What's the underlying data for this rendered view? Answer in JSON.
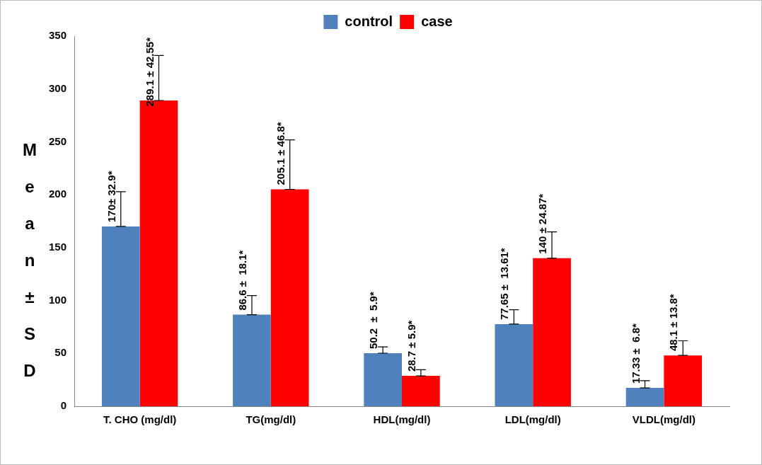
{
  "chart_data": {
    "type": "bar",
    "ylabel": "Mean±SD",
    "categories": [
      "T. CHO (mg/dl)",
      "TG(mg/dl)",
      "HDL(mg/dl)",
      "LDL(mg/dl)",
      "VLDL(mg/dl)"
    ],
    "series": [
      {
        "name": "control",
        "color": "#4f81bd",
        "values": [
          170,
          86.6,
          50.2,
          77.65,
          17.33
        ],
        "errors": [
          [
            170,
            202.9
          ],
          [
            86.6,
            104.7
          ],
          [
            50.2,
            56.1
          ],
          [
            77.65,
            91.26
          ],
          [
            17.33,
            24.13
          ]
        ],
        "value_labels": [
          "170± 32.9*",
          "86.6 ±  18.1*",
          "50.2  ±  5.9*",
          "77.65 ±  13.61*",
          "17.33 ±  6.8*"
        ]
      },
      {
        "name": "case",
        "color": "#ff0000",
        "values": [
          289.1,
          205.1,
          28.7,
          140,
          48.1
        ],
        "errors": [
          [
            289.1,
            331.65
          ],
          [
            205.1,
            251.9
          ],
          [
            28.7,
            34.6
          ],
          [
            140,
            164.87
          ],
          [
            48.1,
            61.9
          ]
        ],
        "value_labels": [
          "289.1 ± 42.55*",
          "205.1 ± 46.8*",
          "28.7 ± 5.9*",
          "140 ± 24.87*",
          "48.1 ± 13.8*"
        ]
      }
    ],
    "ylim": [
      0,
      350
    ],
    "yticks": [
      0,
      50,
      100,
      150,
      200,
      250,
      300,
      350
    ],
    "grid": false,
    "legend": "top"
  }
}
